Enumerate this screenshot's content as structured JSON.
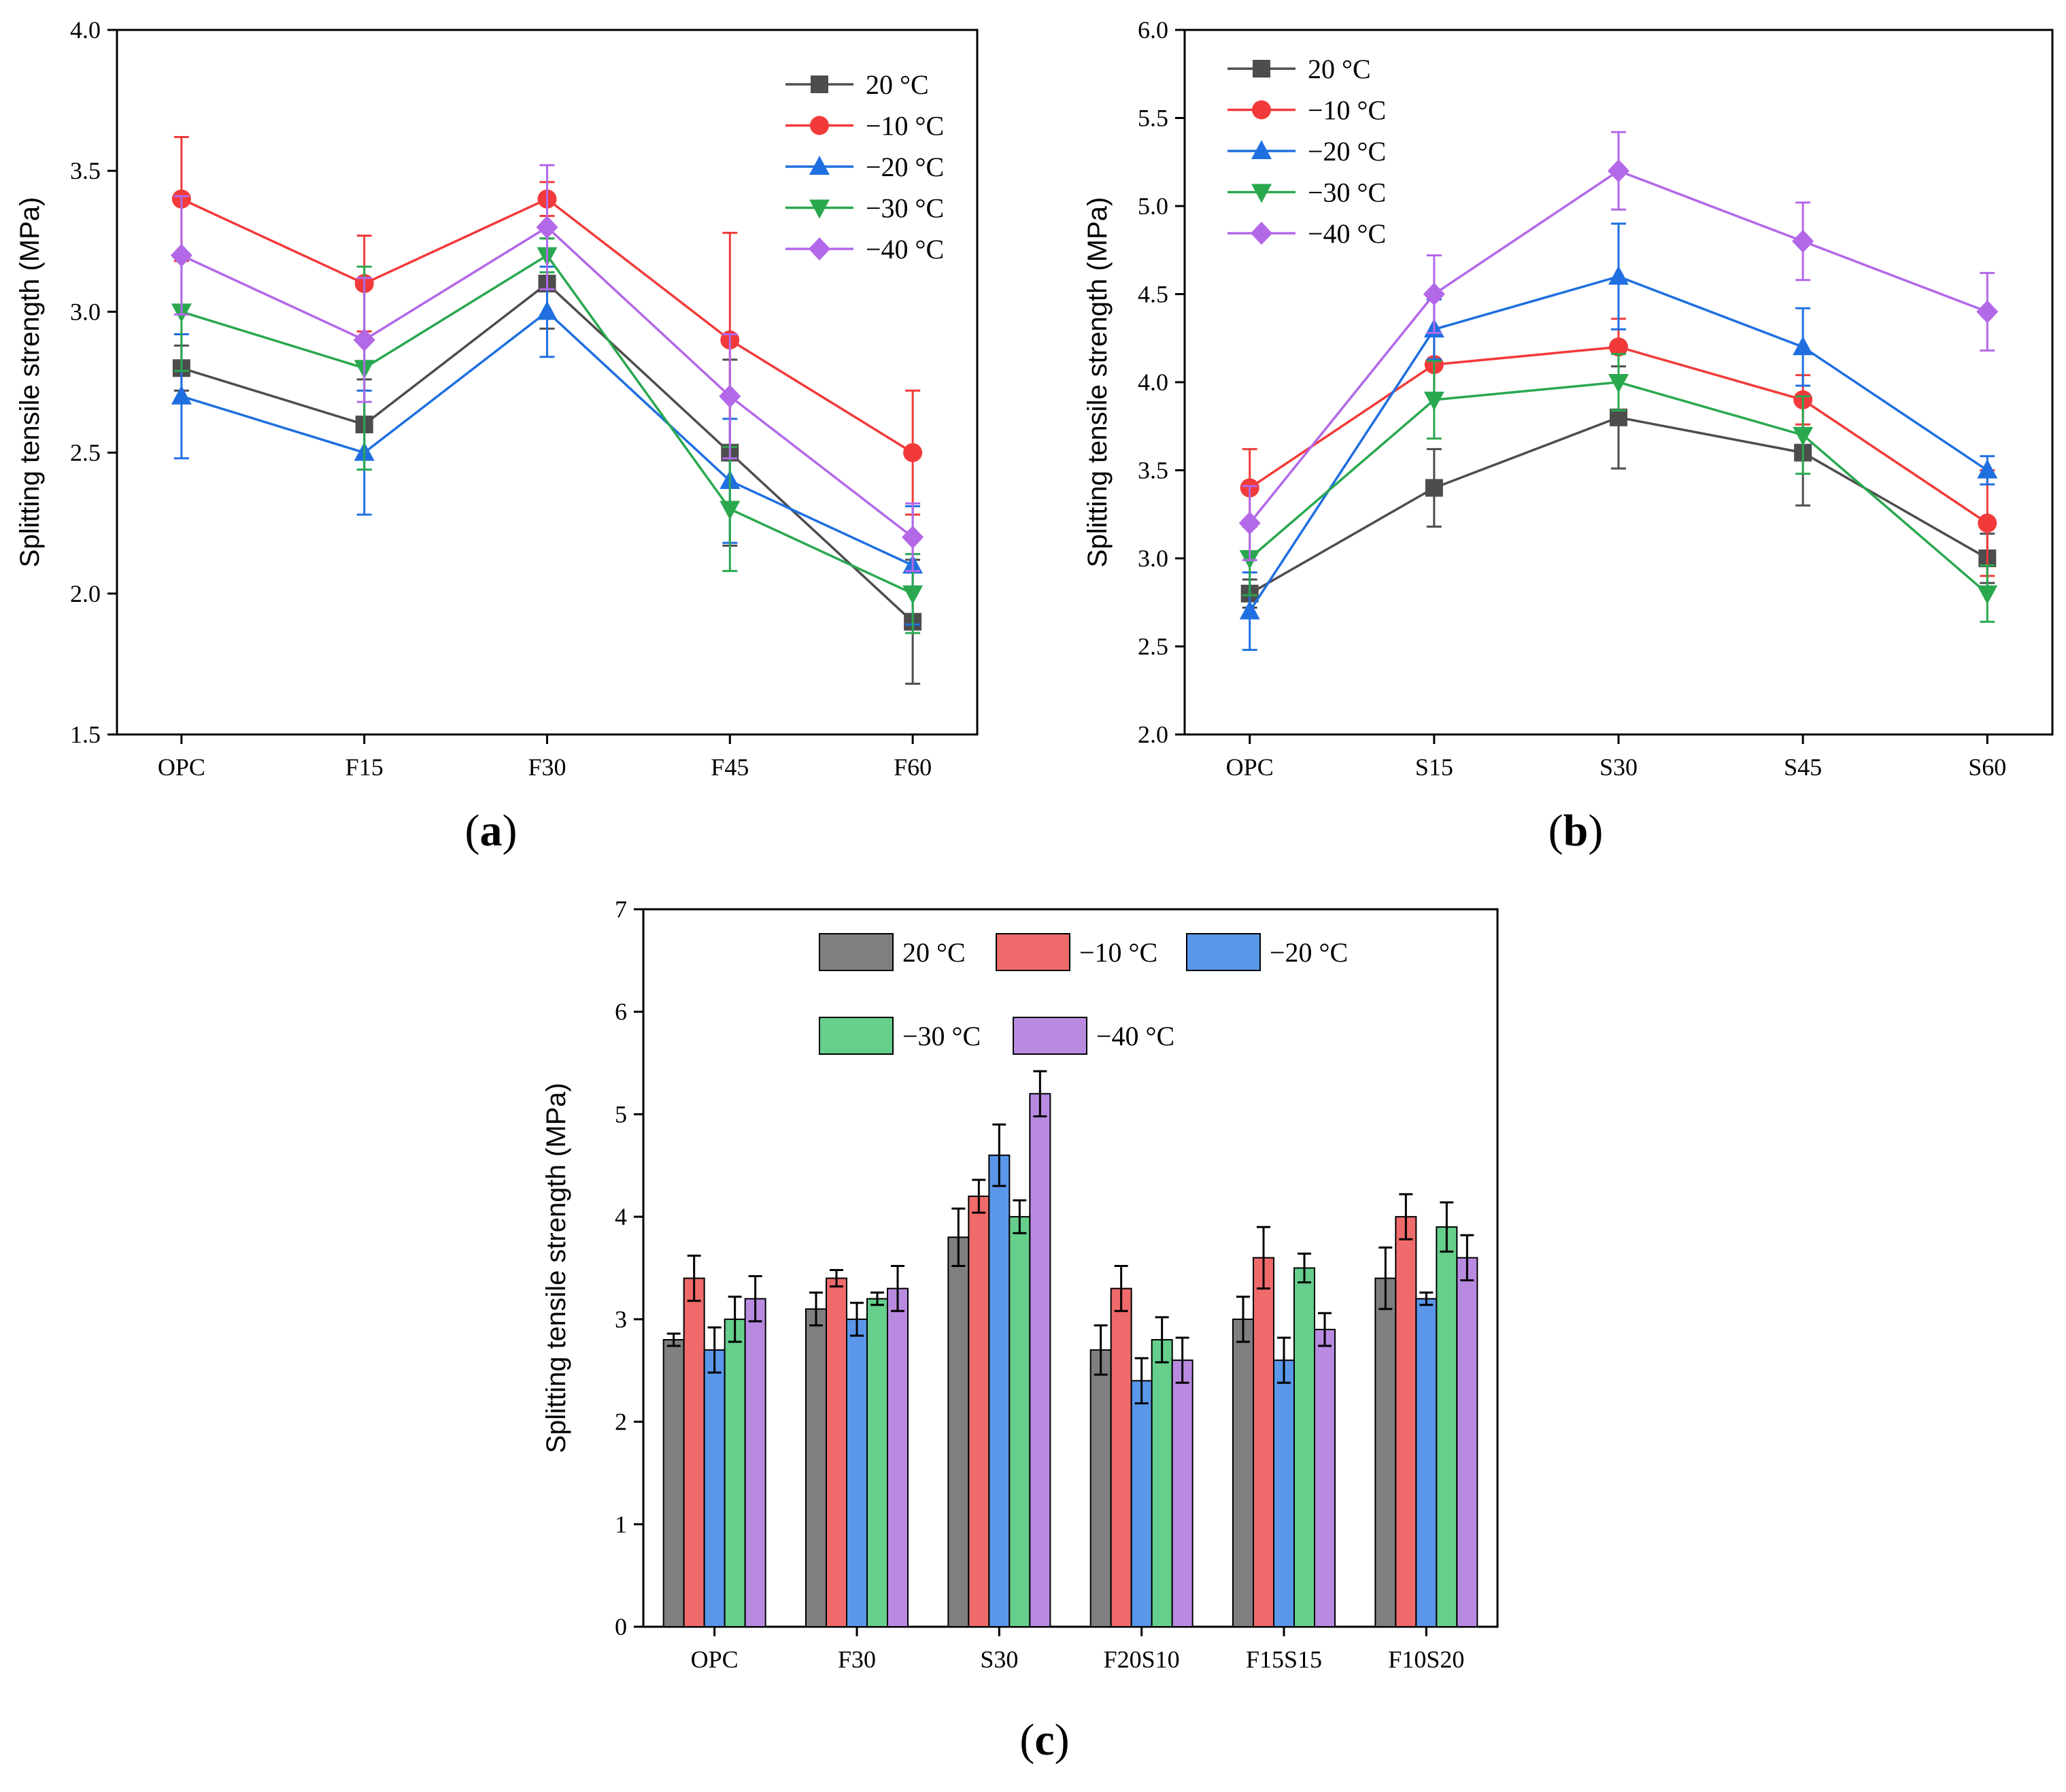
{
  "colors": {
    "20 °C": "#4d4d4d",
    "−10 °C": "#f23a3a",
    "−20 °C": "#1f6fe0",
    "−30 °C": "#2aa84f",
    "−40 °C": "#b368e8"
  },
  "bar_colors": {
    "20 °C": "#7f7f7f",
    "−10 °C": "#ef6a6a",
    "−20 °C": "#5a97ea",
    "−30 °C": "#66cf8c",
    "−40 °C": "#b88be0"
  },
  "chart_data": [
    {
      "panel": "(a)",
      "panel_prefix": "(",
      "panel_letter": "a",
      "panel_suffix": ")",
      "type": "line",
      "ylabel": "Splitting tensile strength (MPa)",
      "categories": [
        "OPC",
        "F15",
        "F30",
        "F45",
        "F60"
      ],
      "ylim": [
        1.5,
        4.0
      ],
      "yticks": [
        "1.5",
        "2.0",
        "2.5",
        "3.0",
        "3.5",
        "4.0"
      ],
      "legend_position": "top-right",
      "series": [
        {
          "name": "20 °C",
          "marker": "square",
          "values": [
            2.8,
            2.6,
            3.1,
            2.5,
            1.9
          ],
          "errors": [
            0.08,
            0.16,
            0.16,
            0.33,
            0.22
          ]
        },
        {
          "name": "−10 °C",
          "marker": "circle",
          "values": [
            3.4,
            3.1,
            3.4,
            2.9,
            2.5
          ],
          "errors": [
            0.22,
            0.17,
            0.06,
            0.38,
            0.22
          ]
        },
        {
          "name": "−20 °C",
          "marker": "triangle-up",
          "values": [
            2.7,
            2.5,
            3.0,
            2.4,
            2.1
          ],
          "errors": [
            0.22,
            0.22,
            0.16,
            0.22,
            0.21
          ]
        },
        {
          "name": "−30 °C",
          "marker": "triangle-down",
          "values": [
            3.0,
            2.8,
            3.2,
            2.3,
            2.0
          ],
          "errors": [
            0.21,
            0.36,
            0.06,
            0.22,
            0.14
          ]
        },
        {
          "name": "−40 °C",
          "marker": "diamond",
          "values": [
            3.2,
            2.9,
            3.3,
            2.7,
            2.2
          ],
          "errors": [
            0.21,
            0.22,
            0.22,
            0.22,
            0.12
          ]
        }
      ]
    },
    {
      "panel": "(b)",
      "panel_prefix": "(",
      "panel_letter": "b",
      "panel_suffix": ")",
      "type": "line",
      "ylabel": "Splitting tensile strength (MPa)",
      "categories": [
        "OPC",
        "S15",
        "S30",
        "S45",
        "S60"
      ],
      "ylim": [
        2.0,
        6.0
      ],
      "yticks": [
        "2.0",
        "2.5",
        "3.0",
        "3.5",
        "4.0",
        "4.5",
        "5.0",
        "5.5",
        "6.0"
      ],
      "legend_position": "top-left",
      "series": [
        {
          "name": "20 °C",
          "marker": "square",
          "values": [
            2.8,
            3.4,
            3.8,
            3.6,
            3.0
          ],
          "errors": [
            0.08,
            0.22,
            0.29,
            0.3,
            0.14
          ]
        },
        {
          "name": "−10 °C",
          "marker": "circle",
          "values": [
            3.4,
            4.1,
            4.2,
            3.9,
            3.2
          ],
          "errors": [
            0.22,
            0.17,
            0.16,
            0.14,
            0.3
          ]
        },
        {
          "name": "−20 °C",
          "marker": "triangle-up",
          "values": [
            2.7,
            4.3,
            4.6,
            4.2,
            3.5
          ],
          "errors": [
            0.22,
            0.17,
            0.3,
            0.22,
            0.08
          ]
        },
        {
          "name": "−30 °C",
          "marker": "triangle-down",
          "values": [
            3.0,
            3.9,
            4.0,
            3.7,
            2.8
          ],
          "errors": [
            0.21,
            0.22,
            0.16,
            0.22,
            0.16
          ]
        },
        {
          "name": "−40 °C",
          "marker": "diamond",
          "values": [
            3.2,
            4.5,
            5.2,
            4.8,
            4.4
          ],
          "errors": [
            0.21,
            0.22,
            0.22,
            0.22,
            0.22
          ]
        }
      ]
    },
    {
      "panel": "(c)",
      "panel_prefix": "(",
      "panel_letter": "c",
      "panel_suffix": ")",
      "type": "bar",
      "ylabel": "Splitting tensile strength (MPa)",
      "categories": [
        "OPC",
        "F30",
        "S30",
        "F20S10",
        "F15S15",
        "F10S20"
      ],
      "ylim": [
        0,
        7
      ],
      "yticks": [
        "0",
        "1",
        "2",
        "3",
        "4",
        "5",
        "6",
        "7"
      ],
      "legend_position": "top",
      "series": [
        {
          "name": "20 °C",
          "values": [
            2.8,
            3.1,
            3.8,
            2.7,
            3.0,
            3.4
          ],
          "errors": [
            0.06,
            0.16,
            0.28,
            0.24,
            0.22,
            0.3
          ]
        },
        {
          "name": "−10 °C",
          "values": [
            3.4,
            3.4,
            4.2,
            3.3,
            3.6,
            4.0
          ],
          "errors": [
            0.22,
            0.08,
            0.16,
            0.22,
            0.3,
            0.22
          ]
        },
        {
          "name": "−20 °C",
          "values": [
            2.7,
            3.0,
            4.6,
            2.4,
            2.6,
            3.2
          ],
          "errors": [
            0.22,
            0.16,
            0.3,
            0.22,
            0.22,
            0.06
          ]
        },
        {
          "name": "−30 °C",
          "values": [
            3.0,
            3.2,
            4.0,
            2.8,
            3.5,
            3.9
          ],
          "errors": [
            0.22,
            0.06,
            0.16,
            0.22,
            0.14,
            0.24
          ]
        },
        {
          "name": "−40 °C",
          "values": [
            3.2,
            3.3,
            5.2,
            2.6,
            2.9,
            3.6
          ],
          "errors": [
            0.22,
            0.22,
            0.22,
            0.22,
            0.16,
            0.22
          ]
        }
      ]
    }
  ]
}
